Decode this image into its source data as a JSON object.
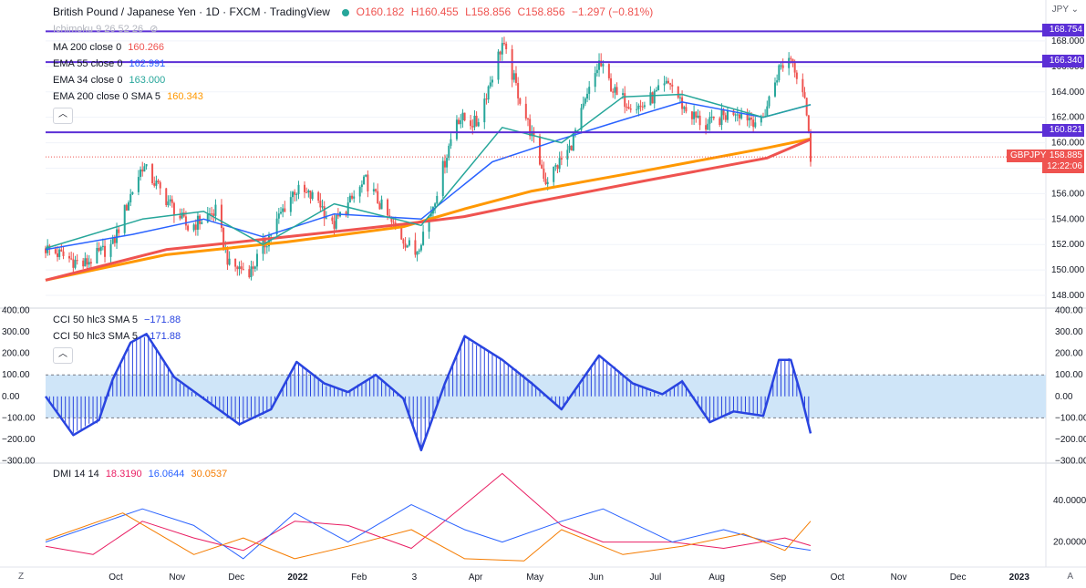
{
  "header": {
    "title": "British Pound / Japanese Yen · 1D · FXCM · TradingView",
    "open": "O160.182",
    "high": "H160.455",
    "low": "L158.856",
    "close": "C158.856",
    "change": "−1.297 (−0.81%)",
    "currency": "JPY"
  },
  "indicators": {
    "ichimoku": "Ichimoku 9 26 52 26",
    "ma200": {
      "label": "MA 200 close 0",
      "value": "160.266",
      "color": "#ef5350"
    },
    "ema55": {
      "label": "EMA 55 close 0",
      "value": "162.991",
      "color": "#2962ff"
    },
    "ema34": {
      "label": "EMA 34 close 0",
      "value": "163.000",
      "color": "#26a69a"
    },
    "ema200": {
      "label": "EMA 200 close 0 SMA 5",
      "value": "160.343",
      "color": "#ff9800"
    },
    "cci1": {
      "label": "CCI 50 hlc3 SMA 5",
      "value": "−171.88"
    },
    "cci2": {
      "label": "CCI 50 hlc3 SMA 5",
      "value": "−171.88"
    },
    "dmi": {
      "label": "DMI 14 14",
      "plus": "18.3190",
      "minus": "16.0644",
      "adx": "30.0537"
    }
  },
  "price_tags": {
    "level1": "168.754",
    "level2": "166.340",
    "level3": "160.821",
    "last": "158.885",
    "symbol": "GBPJPY",
    "countdown": "12:22:06"
  },
  "corners": {
    "left": "Z",
    "right": "A"
  },
  "colors": {
    "up": "#26a69a",
    "down": "#ef5350",
    "hline": "#5b2fd6",
    "cci": "#2944e0",
    "cci_band": "#cfe5f8",
    "dmi_plus": "#e91e63",
    "dmi_minus": "#2962ff",
    "adx": "#f57c00"
  },
  "chart_data": [
    {
      "type": "candlestick",
      "title": "British Pound / Japanese Yen",
      "ylim": [
        147,
        169.5
      ],
      "yticks": [
        "148.000",
        "150.000",
        "152.000",
        "154.000",
        "156.000",
        "158.000",
        "160.000",
        "162.000",
        "164.000",
        "166.000",
        "168.000"
      ],
      "x_labels": [
        "Oct",
        "Nov",
        "Dec",
        "2022",
        "Feb",
        "3",
        "Apr",
        "May",
        "Jun",
        "Jul",
        "Aug",
        "Sep",
        "Oct",
        "Nov",
        "Dec",
        "2023"
      ],
      "horizontal_levels": [
        168.754,
        166.34,
        160.821
      ],
      "price_anchors": [
        {
          "date": "2021-09-01",
          "value": 151.7
        },
        {
          "date": "2021-09-20",
          "value": 150.4
        },
        {
          "date": "2021-10-05",
          "value": 152.0
        },
        {
          "date": "2021-10-13",
          "value": 155.5
        },
        {
          "date": "2021-10-20",
          "value": 158.2
        },
        {
          "date": "2021-11-01",
          "value": 155.6
        },
        {
          "date": "2021-11-12",
          "value": 153.3
        },
        {
          "date": "2021-11-26",
          "value": 154.6
        },
        {
          "date": "2021-12-03",
          "value": 150.3
        },
        {
          "date": "2021-12-14",
          "value": 150.0
        },
        {
          "date": "2021-12-31",
          "value": 155.0
        },
        {
          "date": "2022-01-05",
          "value": 156.3
        },
        {
          "date": "2022-01-17",
          "value": 155.5
        },
        {
          "date": "2022-01-24",
          "value": 153.4
        },
        {
          "date": "2022-02-10",
          "value": 157.0
        },
        {
          "date": "2022-02-24",
          "value": 153.4
        },
        {
          "date": "2022-03-07",
          "value": 151.3
        },
        {
          "date": "2022-03-15",
          "value": 154.6
        },
        {
          "date": "2022-03-28",
          "value": 162.0
        },
        {
          "date": "2022-04-07",
          "value": 161.5
        },
        {
          "date": "2022-04-20",
          "value": 167.8
        },
        {
          "date": "2022-05-02",
          "value": 162.0
        },
        {
          "date": "2022-05-12",
          "value": 157.0
        },
        {
          "date": "2022-05-24",
          "value": 159.5
        },
        {
          "date": "2022-06-08",
          "value": 166.3
        },
        {
          "date": "2022-06-17",
          "value": 163.6
        },
        {
          "date": "2022-06-29",
          "value": 162.8
        },
        {
          "date": "2022-07-14",
          "value": 164.7
        },
        {
          "date": "2022-07-21",
          "value": 162.7
        },
        {
          "date": "2022-08-01",
          "value": 161.3
        },
        {
          "date": "2022-08-16",
          "value": 162.6
        },
        {
          "date": "2022-08-29",
          "value": 161.5
        },
        {
          "date": "2022-09-07",
          "value": 165.8
        },
        {
          "date": "2022-09-13",
          "value": 166.8
        },
        {
          "date": "2022-09-20",
          "value": 163.8
        },
        {
          "date": "2022-09-23",
          "value": 158.9
        }
      ],
      "series": [
        {
          "name": "EMA 200",
          "color": "#ff9800",
          "values": [
            {
              "date": "2021-09-01",
              "value": 149.2
            },
            {
              "date": "2021-11-01",
              "value": 151.2
            },
            {
              "date": "2022-01-01",
              "value": 152.2
            },
            {
              "date": "2022-03-01",
              "value": 153.4
            },
            {
              "date": "2022-04-01",
              "value": 154.8
            },
            {
              "date": "2022-05-05",
              "value": 156.2
            },
            {
              "date": "2022-07-01",
              "value": 157.8
            },
            {
              "date": "2022-09-01",
              "value": 159.6
            },
            {
              "date": "2022-09-23",
              "value": 160.3
            }
          ]
        },
        {
          "name": "MA 200",
          "color": "#ef5350",
          "values": [
            {
              "date": "2021-09-01",
              "value": 149.2
            },
            {
              "date": "2021-11-01",
              "value": 151.6
            },
            {
              "date": "2022-01-01",
              "value": 152.6
            },
            {
              "date": "2022-03-01",
              "value": 153.6
            },
            {
              "date": "2022-04-01",
              "value": 154.2
            },
            {
              "date": "2022-05-05",
              "value": 155.3
            },
            {
              "date": "2022-07-01",
              "value": 157.0
            },
            {
              "date": "2022-09-01",
              "value": 158.8
            },
            {
              "date": "2022-09-23",
              "value": 160.26
            }
          ]
        },
        {
          "name": "EMA 55",
          "color": "#2962ff",
          "values": [
            {
              "date": "2021-09-01",
              "value": 151.6
            },
            {
              "date": "2021-10-15",
              "value": 152.8
            },
            {
              "date": "2021-11-20",
              "value": 154.0
            },
            {
              "date": "2021-12-20",
              "value": 152.6
            },
            {
              "date": "2022-01-25",
              "value": 154.4
            },
            {
              "date": "2022-03-10",
              "value": 154.0
            },
            {
              "date": "2022-04-15",
              "value": 158.5
            },
            {
              "date": "2022-05-20",
              "value": 160.3
            },
            {
              "date": "2022-06-20",
              "value": 161.8
            },
            {
              "date": "2022-07-20",
              "value": 163.2
            },
            {
              "date": "2022-08-30",
              "value": 162.0
            },
            {
              "date": "2022-09-23",
              "value": 162.99
            }
          ]
        },
        {
          "name": "EMA 34",
          "color": "#26a69a",
          "values": [
            {
              "date": "2021-09-01",
              "value": 151.7
            },
            {
              "date": "2021-10-20",
              "value": 154.0
            },
            {
              "date": "2021-11-20",
              "value": 154.6
            },
            {
              "date": "2021-12-20",
              "value": 152.0
            },
            {
              "date": "2022-01-25",
              "value": 155.2
            },
            {
              "date": "2022-03-10",
              "value": 153.5
            },
            {
              "date": "2022-04-20",
              "value": 161.2
            },
            {
              "date": "2022-05-20",
              "value": 160.0
            },
            {
              "date": "2022-06-20",
              "value": 163.6
            },
            {
              "date": "2022-07-20",
              "value": 163.8
            },
            {
              "date": "2022-08-30",
              "value": 162.0
            },
            {
              "date": "2022-09-23",
              "value": 163.0
            }
          ]
        }
      ]
    },
    {
      "type": "area",
      "title": "CCI 50 hlc3 SMA 5",
      "ylim": [
        -310,
        410
      ],
      "yticks": [
        "400.00",
        "300.00",
        "200.00",
        "100.00",
        "0.00",
        "−100.00",
        "−200.00",
        "−300.00"
      ],
      "band": [
        -100,
        100
      ],
      "series": [
        {
          "name": "CCI",
          "values": [
            {
              "date": "2021-09-01",
              "value": 0
            },
            {
              "date": "2021-09-15",
              "value": -180
            },
            {
              "date": "2021-09-28",
              "value": -110
            },
            {
              "date": "2021-10-05",
              "value": 80
            },
            {
              "date": "2021-10-14",
              "value": 250
            },
            {
              "date": "2021-10-22",
              "value": 290
            },
            {
              "date": "2021-11-05",
              "value": 90
            },
            {
              "date": "2021-11-20",
              "value": -10
            },
            {
              "date": "2021-12-08",
              "value": -130
            },
            {
              "date": "2021-12-24",
              "value": -60
            },
            {
              "date": "2022-01-06",
              "value": 160
            },
            {
              "date": "2022-01-20",
              "value": 60
            },
            {
              "date": "2022-02-01",
              "value": 20
            },
            {
              "date": "2022-02-15",
              "value": 100
            },
            {
              "date": "2022-03-01",
              "value": -10
            },
            {
              "date": "2022-03-10",
              "value": -250
            },
            {
              "date": "2022-03-22",
              "value": 60
            },
            {
              "date": "2022-04-01",
              "value": 280
            },
            {
              "date": "2022-04-20",
              "value": 170
            },
            {
              "date": "2022-05-05",
              "value": 60
            },
            {
              "date": "2022-05-20",
              "value": -60
            },
            {
              "date": "2022-06-08",
              "value": 190
            },
            {
              "date": "2022-06-25",
              "value": 60
            },
            {
              "date": "2022-07-10",
              "value": 10
            },
            {
              "date": "2022-07-20",
              "value": 70
            },
            {
              "date": "2022-08-03",
              "value": -120
            },
            {
              "date": "2022-08-15",
              "value": -70
            },
            {
              "date": "2022-08-30",
              "value": -90
            },
            {
              "date": "2022-09-07",
              "value": 170
            },
            {
              "date": "2022-09-13",
              "value": 170
            },
            {
              "date": "2022-09-18",
              "value": 10
            },
            {
              "date": "2022-09-23",
              "value": -171.88
            }
          ]
        }
      ]
    },
    {
      "type": "line",
      "title": "DMI 14 14",
      "ylim": [
        8,
        58
      ],
      "yticks": [
        "40.0000",
        "20.0000"
      ],
      "series": [
        {
          "name": "+DI",
          "color": "#e91e63",
          "values": [
            {
              "date": "2021-09-01",
              "value": 18
            },
            {
              "date": "2021-09-25",
              "value": 14
            },
            {
              "date": "2021-10-20",
              "value": 30
            },
            {
              "date": "2021-11-15",
              "value": 22
            },
            {
              "date": "2021-12-10",
              "value": 16
            },
            {
              "date": "2022-01-05",
              "value": 30
            },
            {
              "date": "2022-02-01",
              "value": 28
            },
            {
              "date": "2022-03-05",
              "value": 17
            },
            {
              "date": "2022-04-01",
              "value": 38
            },
            {
              "date": "2022-04-20",
              "value": 53
            },
            {
              "date": "2022-05-20",
              "value": 28
            },
            {
              "date": "2022-06-10",
              "value": 20
            },
            {
              "date": "2022-07-15",
              "value": 20
            },
            {
              "date": "2022-08-10",
              "value": 17
            },
            {
              "date": "2022-09-10",
              "value": 22
            },
            {
              "date": "2022-09-23",
              "value": 18.3
            }
          ]
        },
        {
          "name": "−DI",
          "color": "#2962ff",
          "values": [
            {
              "date": "2021-09-01",
              "value": 20
            },
            {
              "date": "2021-10-20",
              "value": 36
            },
            {
              "date": "2021-11-15",
              "value": 28
            },
            {
              "date": "2021-12-10",
              "value": 12
            },
            {
              "date": "2022-01-05",
              "value": 34
            },
            {
              "date": "2022-02-01",
              "value": 20
            },
            {
              "date": "2022-03-05",
              "value": 38
            },
            {
              "date": "2022-04-01",
              "value": 26
            },
            {
              "date": "2022-04-20",
              "value": 20
            },
            {
              "date": "2022-05-20",
              "value": 30
            },
            {
              "date": "2022-06-10",
              "value": 36
            },
            {
              "date": "2022-07-15",
              "value": 20
            },
            {
              "date": "2022-08-10",
              "value": 26
            },
            {
              "date": "2022-09-10",
              "value": 18
            },
            {
              "date": "2022-09-23",
              "value": 16.06
            }
          ]
        },
        {
          "name": "ADX",
          "color": "#f57c00",
          "values": [
            {
              "date": "2021-09-01",
              "value": 21
            },
            {
              "date": "2021-10-10",
              "value": 34
            },
            {
              "date": "2021-11-15",
              "value": 14
            },
            {
              "date": "2021-12-10",
              "value": 22
            },
            {
              "date": "2022-01-05",
              "value": 12
            },
            {
              "date": "2022-02-01",
              "value": 18
            },
            {
              "date": "2022-03-05",
              "value": 26
            },
            {
              "date": "2022-04-01",
              "value": 12
            },
            {
              "date": "2022-05-01",
              "value": 11
            },
            {
              "date": "2022-05-20",
              "value": 26
            },
            {
              "date": "2022-06-20",
              "value": 14
            },
            {
              "date": "2022-07-20",
              "value": 18
            },
            {
              "date": "2022-08-20",
              "value": 24
            },
            {
              "date": "2022-09-10",
              "value": 16
            },
            {
              "date": "2022-09-23",
              "value": 30.05
            }
          ]
        }
      ]
    }
  ]
}
